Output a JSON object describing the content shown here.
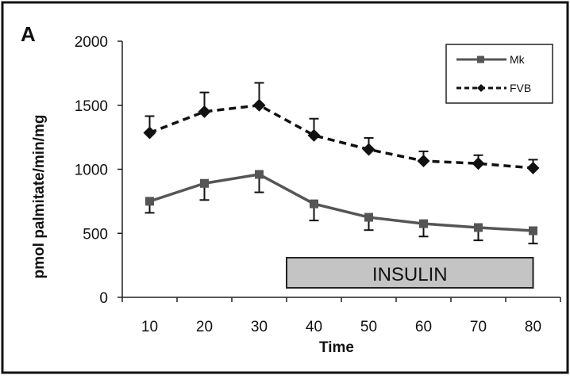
{
  "panel_label": "A",
  "colors": {
    "background": "#ffffff",
    "frame": "#111111",
    "axis": "#222222",
    "mk_series": "#555555",
    "fvb_series": "#111111",
    "insulin_fill": "#c4c4c4",
    "insulin_stroke": "#222222"
  },
  "annotation": {
    "label": "INSULIN",
    "x_start": 35,
    "x_end": 80
  },
  "chart_data": {
    "type": "line",
    "title": "",
    "xlabel": "Time",
    "ylabel": "pmol palmitate/min/mg",
    "x": [
      10,
      20,
      30,
      40,
      50,
      60,
      70,
      80
    ],
    "xlim": [
      5,
      85
    ],
    "ylim": [
      0,
      2000
    ],
    "x_ticks": [
      "10",
      "20",
      "30",
      "40",
      "50",
      "60",
      "70",
      "80"
    ],
    "y_ticks": [
      "0",
      "500",
      "1000",
      "1500",
      "2000"
    ],
    "grid": false,
    "legend_position": "top-right",
    "series": [
      {
        "name": "Mk",
        "marker": "square",
        "line_style": "solid",
        "values": [
          750,
          890,
          960,
          730,
          625,
          575,
          545,
          520
        ],
        "errors": [
          90,
          130,
          140,
          130,
          100,
          100,
          100,
          100
        ]
      },
      {
        "name": "FVB",
        "marker": "diamond",
        "line_style": "dashed",
        "values": [
          1285,
          1450,
          1500,
          1265,
          1155,
          1065,
          1045,
          1010
        ],
        "errors": [
          130,
          150,
          175,
          130,
          90,
          75,
          65,
          65
        ]
      }
    ]
  }
}
